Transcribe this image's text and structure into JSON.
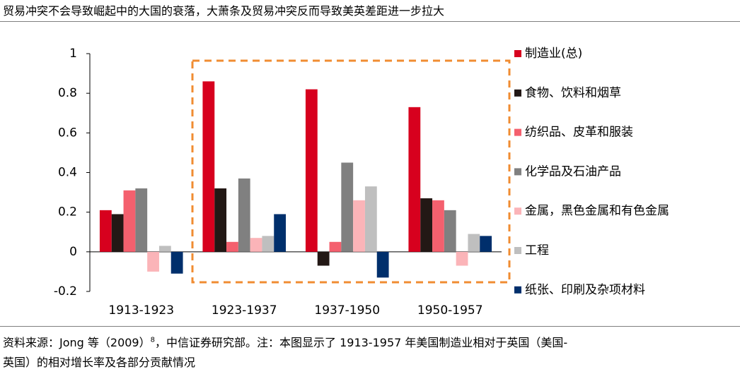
{
  "chart_data": {
    "type": "bar",
    "title": "贸易冲突不会导致崛起中的大国的衰落，大萧条及贸易冲突反而导致美英差距进一步拉大",
    "categories": [
      "1913-1923",
      "1923-1937",
      "1937-1950",
      "1950-1957"
    ],
    "series": [
      {
        "name": "制造业(总)",
        "color": "#d7001e",
        "values": [
          0.21,
          0.86,
          0.82,
          0.73
        ]
      },
      {
        "name": "食物、饮料和烟草",
        "color": "#231815",
        "values": [
          0.19,
          0.32,
          -0.07,
          0.27
        ]
      },
      {
        "name": "纺织品、皮革和服装",
        "color": "#f4606e",
        "values": [
          0.31,
          0.05,
          0.05,
          0.26
        ]
      },
      {
        "name": "化学品及石油产品",
        "color": "#808080",
        "values": [
          0.32,
          0.37,
          0.45,
          0.21
        ]
      },
      {
        "name": "金属，黑色金属和有色金属",
        "color": "#fbb4b8",
        "values": [
          -0.1,
          0.07,
          0.26,
          -0.07
        ]
      },
      {
        "name": "工程",
        "color": "#bfbfbf",
        "values": [
          0.03,
          0.08,
          0.33,
          0.09
        ]
      },
      {
        "name": "纸张、印刷及杂项材料",
        "color": "#002f6c",
        "values": [
          -0.11,
          0.19,
          -0.13,
          0.08
        ]
      }
    ],
    "ylim": [
      -0.2,
      1
    ],
    "yticks": [
      -0.2,
      0,
      0.2,
      0.4,
      0.6,
      0.8,
      1
    ],
    "grid": false,
    "source": {
      "line1a": "资料来源：Jong 等（2009）",
      "sup": "8",
      "line1b": "，中信证券研究部。注：本图显示了 1913-1957 年美国制造业相对于英国（美国-",
      "line2": "英国）的相对增长率及各部分贡献情况"
    }
  }
}
